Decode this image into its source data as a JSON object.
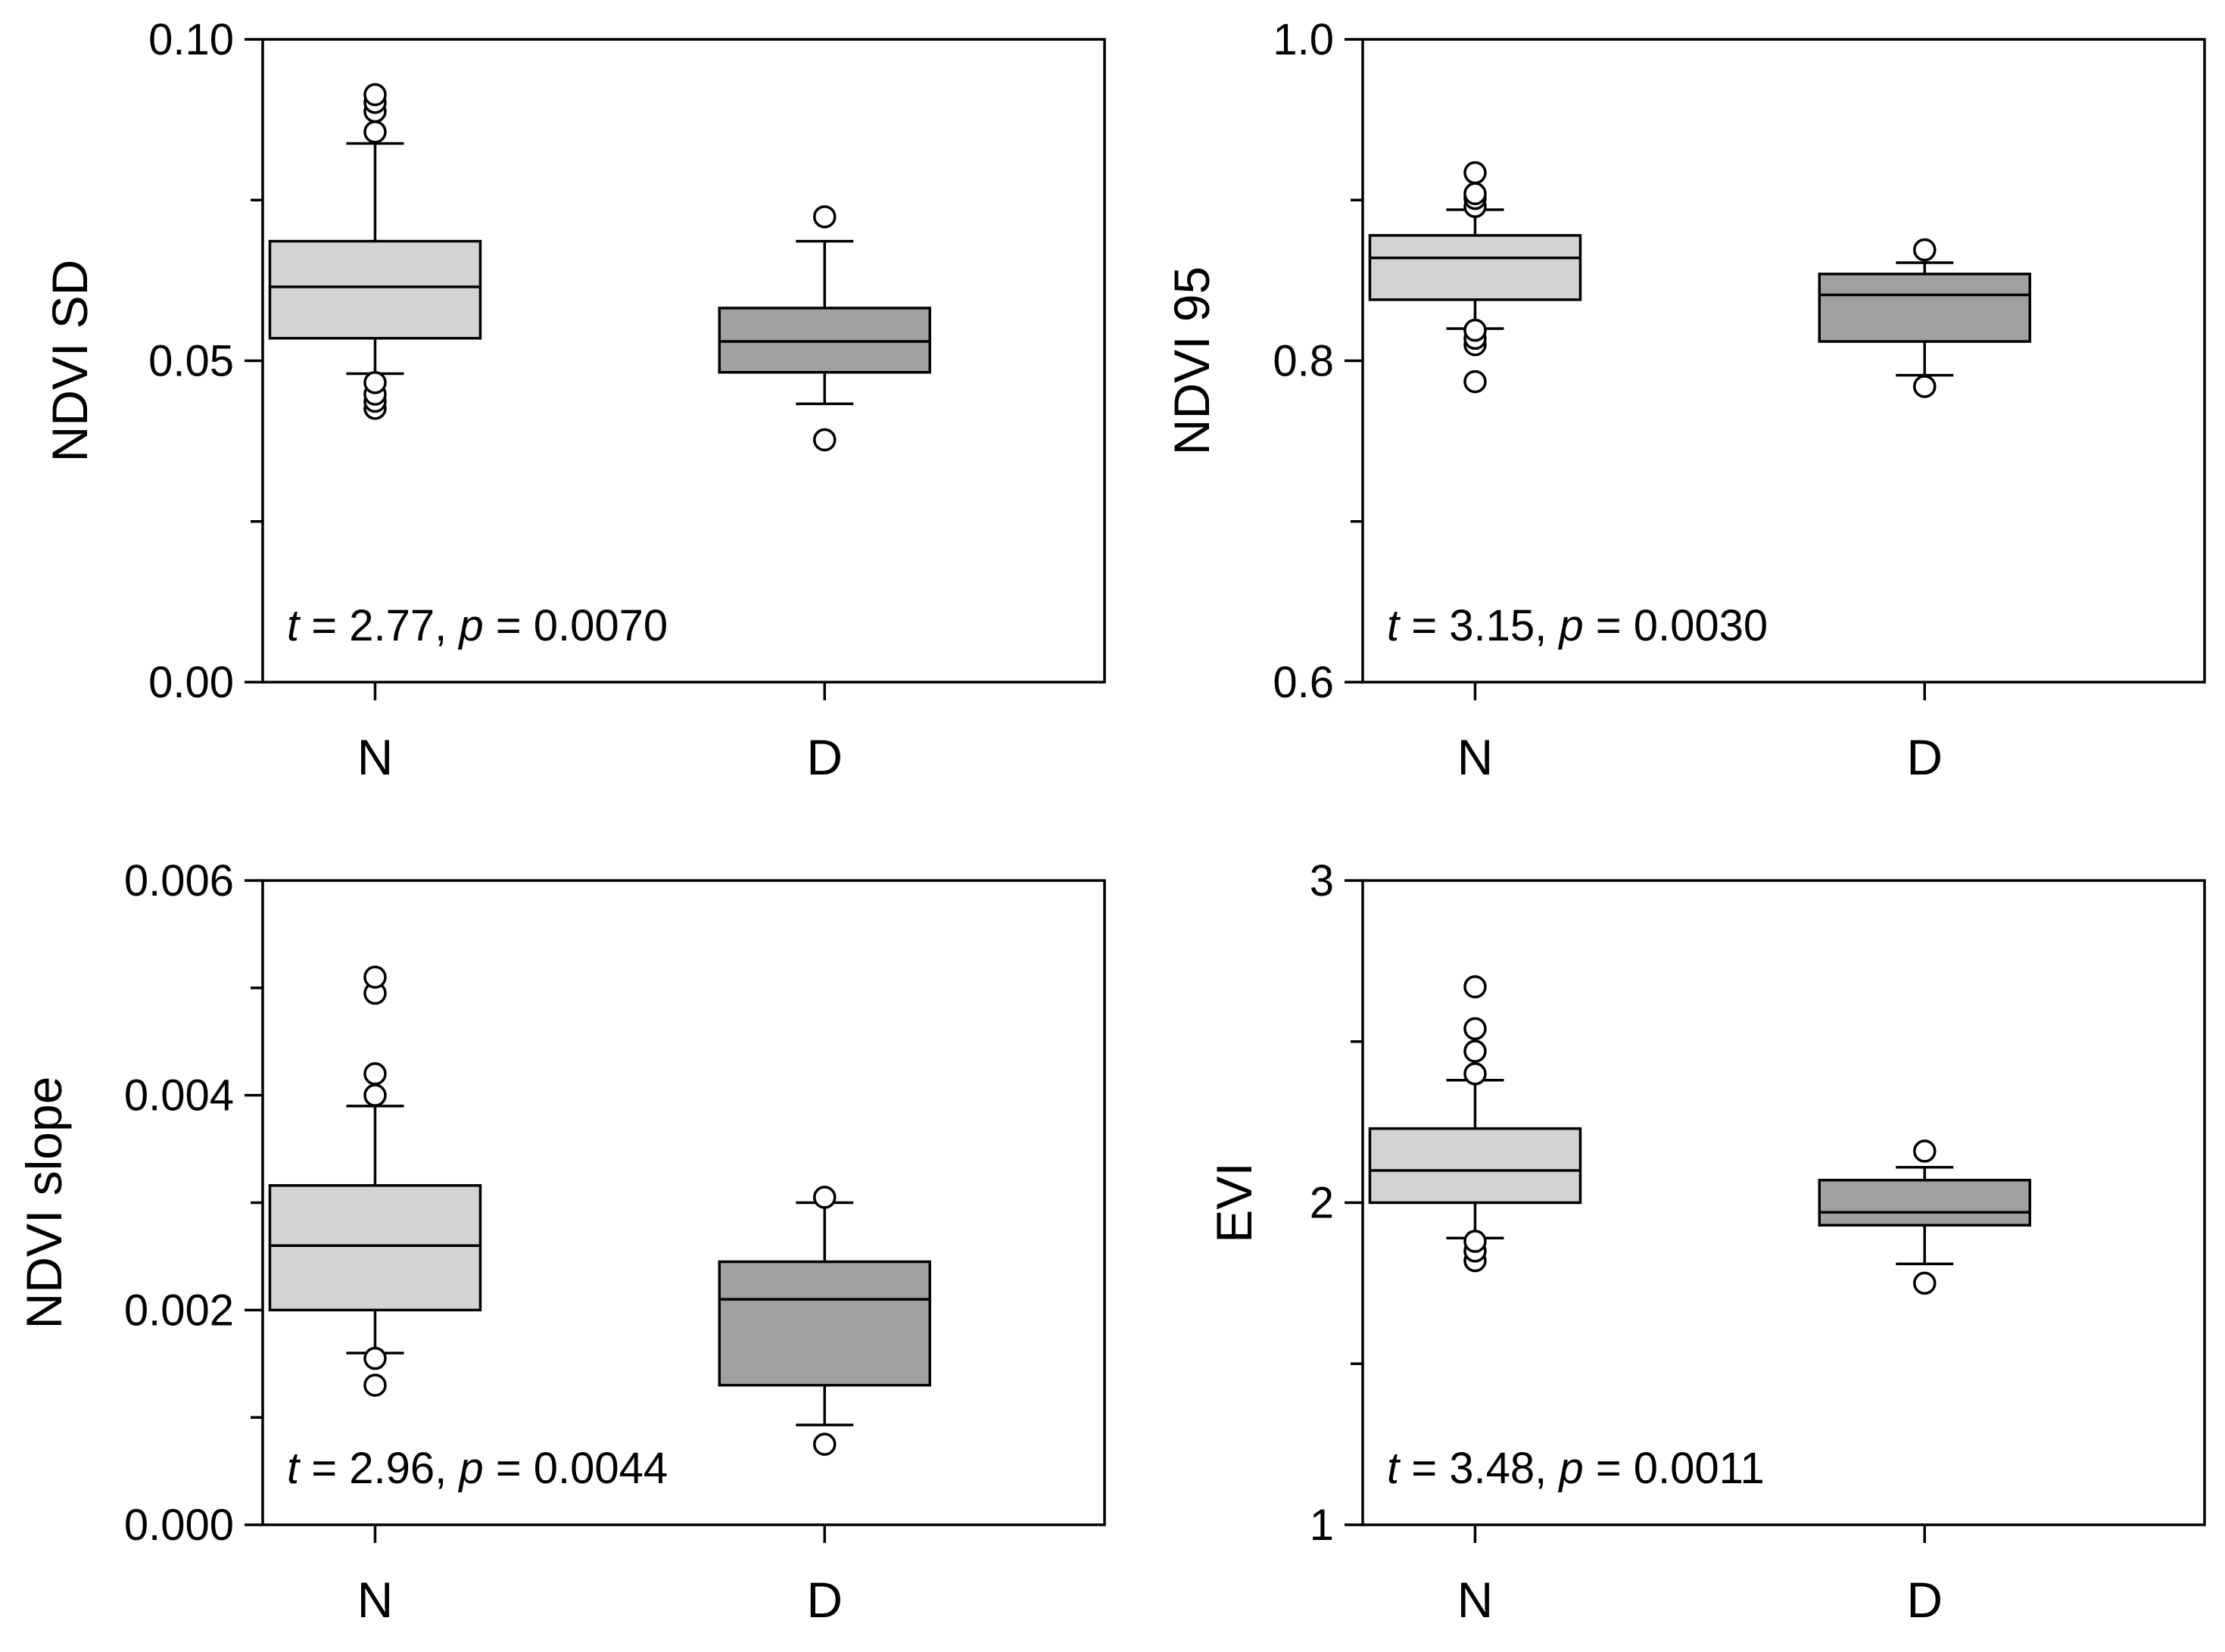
{
  "colors": {
    "N": "#d3d3d3",
    "D": "#a0a0a0",
    "stroke": "#000000"
  },
  "chart_data": [
    {
      "type": "boxplot",
      "ylabel": "NDVI SD",
      "categories": [
        "N",
        "D"
      ],
      "ylim": [
        0.0,
        0.1
      ],
      "yticks": [
        0.0,
        0.05,
        0.1
      ],
      "yticklabels": [
        "0.00",
        "0.05",
        "0.10"
      ],
      "minor_step": 0.025,
      "stat": {
        "t_sym": "t",
        "t_val": " = 2.77, ",
        "p_sym": "p",
        "p_val": " = 0.0070"
      },
      "series": [
        {
          "name": "N",
          "q1": 0.0535,
          "median": 0.0615,
          "q3": 0.0686,
          "whisker_low": 0.048,
          "whisker_high": 0.0838,
          "outliers": [
            0.0426,
            0.0437,
            0.0448,
            0.0466,
            0.0856,
            0.0888,
            0.0902,
            0.0914
          ]
        },
        {
          "name": "D",
          "q1": 0.0482,
          "median": 0.053,
          "q3": 0.0582,
          "whisker_low": 0.0433,
          "whisker_high": 0.0686,
          "outliers": [
            0.0377,
            0.0724
          ]
        }
      ]
    },
    {
      "type": "boxplot",
      "ylabel": "NDVI 95",
      "categories": [
        "N",
        "D"
      ],
      "ylim": [
        0.6,
        1.0
      ],
      "yticks": [
        0.6,
        0.8,
        1.0
      ],
      "yticklabels": [
        "0.6",
        "0.8",
        "1.0"
      ],
      "minor_step": 0.1,
      "stat": {
        "t_sym": "t",
        "t_val": " = 3.15, ",
        "p_sym": "p",
        "p_val": " = 0.0030"
      },
      "series": [
        {
          "name": "N",
          "q1": 0.838,
          "median": 0.864,
          "q3": 0.878,
          "whisker_low": 0.82,
          "whisker_high": 0.894,
          "outliers": [
            0.787,
            0.81,
            0.814,
            0.819,
            0.896,
            0.901,
            0.904,
            0.917
          ]
        },
        {
          "name": "D",
          "q1": 0.812,
          "median": 0.841,
          "q3": 0.854,
          "whisker_low": 0.791,
          "whisker_high": 0.861,
          "outliers": [
            0.784,
            0.869
          ]
        }
      ]
    },
    {
      "type": "boxplot",
      "ylabel": "NDVI slope",
      "categories": [
        "N",
        "D"
      ],
      "ylim": [
        0.0,
        0.006
      ],
      "yticks": [
        0.0,
        0.002,
        0.004,
        0.006
      ],
      "yticklabels": [
        "0.000",
        "0.002",
        "0.004",
        "0.006"
      ],
      "minor_step": 0.001,
      "stat": {
        "t_sym": "t",
        "t_val": " = 2.96, ",
        "p_sym": "p",
        "p_val": " = 0.0044"
      },
      "series": [
        {
          "name": "N",
          "q1": 0.002,
          "median": 0.0026,
          "q3": 0.00316,
          "whisker_low": 0.0016,
          "whisker_high": 0.0039,
          "outliers": [
            0.0013,
            0.00155,
            0.004,
            0.0042,
            0.00495,
            0.0051
          ]
        },
        {
          "name": "D",
          "q1": 0.0013,
          "median": 0.0021,
          "q3": 0.00245,
          "whisker_low": 0.00093,
          "whisker_high": 0.003,
          "outliers": [
            0.00075,
            0.00305
          ]
        }
      ]
    },
    {
      "type": "boxplot",
      "ylabel": "EVI",
      "categories": [
        "N",
        "D"
      ],
      "ylim": [
        1,
        3
      ],
      "yticks": [
        1,
        2,
        3
      ],
      "yticklabels": [
        "1",
        "2",
        "3"
      ],
      "minor_step": 0.5,
      "stat": {
        "t_sym": "t",
        "t_val": " = 3.48, ",
        "p_sym": "p",
        "p_val": " = 0.0011"
      },
      "series": [
        {
          "name": "N",
          "q1": 2.0,
          "median": 2.1,
          "q3": 2.23,
          "whisker_low": 1.89,
          "whisker_high": 2.38,
          "outliers": [
            1.82,
            1.85,
            1.88,
            2.4,
            2.47,
            2.54,
            2.67
          ]
        },
        {
          "name": "D",
          "q1": 1.93,
          "median": 1.97,
          "q3": 2.07,
          "whisker_low": 1.81,
          "whisker_high": 2.11,
          "outliers": [
            1.75,
            2.16
          ]
        }
      ]
    }
  ]
}
